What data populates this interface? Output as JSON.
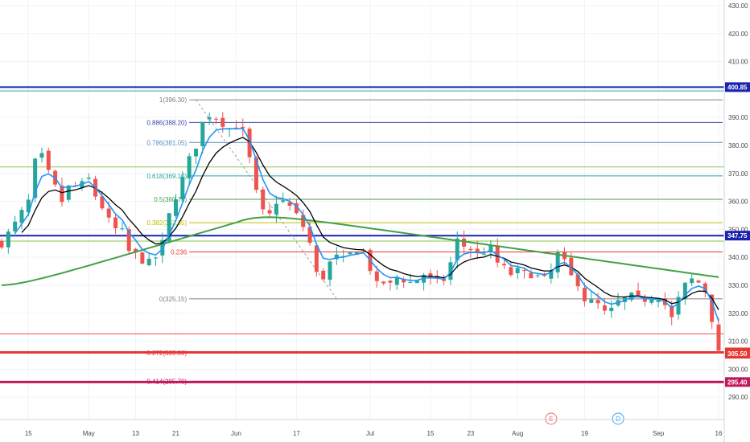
{
  "colors": {
    "up": "#26a69a",
    "down": "#ef5350",
    "ma_fast": "#2196f3",
    "ma_slow": "#000000",
    "ma_long": "#43a047",
    "grid": "#f0f3fa",
    "axis_text": "#4a4a4a"
  },
  "chart_data": {
    "type": "candlestick",
    "ylim": [
      282,
      432
    ],
    "y_ticks": [
      "290.00",
      "300.00",
      "310.00",
      "320.00",
      "330.00",
      "340.00",
      "350.00",
      "360.00",
      "370.00",
      "380.00",
      "390.00",
      "400.00",
      "410.00",
      "420.00",
      "430.00"
    ],
    "x_labels": [
      {
        "label": "15",
        "i": 4
      },
      {
        "label": "May",
        "i": 13
      },
      {
        "label": "13",
        "i": 20
      },
      {
        "label": "21",
        "i": 26
      },
      {
        "label": "Jun",
        "i": 35
      },
      {
        "label": "17",
        "i": 44
      },
      {
        "label": "Jul",
        "i": 55
      },
      {
        "label": "15",
        "i": 64
      },
      {
        "label": "23",
        "i": 70
      },
      {
        "label": "Aug",
        "i": 77
      },
      {
        "label": "19",
        "i": 87
      },
      {
        "label": "Sep",
        "i": 98
      },
      {
        "label": "16",
        "i": 107
      }
    ],
    "events": [
      {
        "label": "E",
        "i": 82,
        "color": "#e57373"
      },
      {
        "label": "D",
        "i": 92,
        "color": "#42a5f5"
      }
    ],
    "close_points": [
      [
        0,
        345
      ],
      [
        2,
        352
      ],
      [
        4,
        360
      ],
      [
        5,
        374
      ],
      [
        6,
        376
      ],
      [
        7,
        370
      ],
      [
        8,
        365
      ],
      [
        9,
        360
      ],
      [
        10,
        365
      ],
      [
        12,
        366
      ],
      [
        13,
        368
      ],
      [
        14,
        362
      ],
      [
        15,
        358
      ],
      [
        16,
        353
      ],
      [
        17,
        350
      ],
      [
        18,
        349
      ],
      [
        19,
        342
      ],
      [
        20,
        341
      ],
      [
        21,
        339
      ],
      [
        22,
        338
      ],
      [
        23,
        340
      ],
      [
        24,
        345
      ],
      [
        25,
        355
      ],
      [
        26,
        362
      ],
      [
        27,
        368
      ],
      [
        28,
        375
      ],
      [
        29,
        380
      ],
      [
        30,
        388
      ],
      [
        31,
        391
      ],
      [
        32,
        390
      ],
      [
        33,
        388
      ],
      [
        34,
        386
      ],
      [
        35,
        387
      ],
      [
        36,
        385
      ],
      [
        37,
        375
      ],
      [
        38,
        363
      ],
      [
        39,
        356
      ],
      [
        40,
        355
      ],
      [
        41,
        360
      ],
      [
        42,
        360
      ],
      [
        43,
        358
      ],
      [
        44,
        355
      ],
      [
        45,
        351
      ],
      [
        46,
        345
      ],
      [
        47,
        334
      ],
      [
        48,
        333
      ],
      [
        49,
        338
      ],
      [
        50,
        340
      ],
      [
        51,
        339
      ],
      [
        52,
        341
      ],
      [
        53,
        343
      ],
      [
        54,
        342
      ],
      [
        55,
        336
      ],
      [
        56,
        330
      ],
      [
        57,
        331
      ],
      [
        58,
        330
      ],
      [
        59,
        333
      ],
      [
        60,
        332
      ],
      [
        61,
        331
      ],
      [
        62,
        332
      ],
      [
        63,
        334
      ],
      [
        64,
        332
      ],
      [
        65,
        331
      ],
      [
        66,
        332
      ],
      [
        67,
        338
      ],
      [
        68,
        346
      ],
      [
        69,
        344
      ],
      [
        70,
        343
      ],
      [
        71,
        341
      ],
      [
        72,
        342
      ],
      [
        73,
        343
      ],
      [
        74,
        338
      ],
      [
        75,
        336
      ],
      [
        76,
        334
      ],
      [
        77,
        335
      ],
      [
        78,
        334
      ],
      [
        79,
        334
      ],
      [
        80,
        333
      ],
      [
        81,
        332
      ],
      [
        82,
        335
      ],
      [
        83,
        341
      ],
      [
        84,
        338
      ],
      [
        85,
        333
      ],
      [
        86,
        331
      ],
      [
        87,
        325
      ],
      [
        88,
        324
      ],
      [
        89,
        323
      ],
      [
        90,
        320
      ],
      [
        91,
        321
      ],
      [
        92,
        324
      ],
      [
        93,
        325
      ],
      [
        94,
        326
      ],
      [
        95,
        325
      ],
      [
        96,
        325
      ],
      [
        97,
        326
      ],
      [
        98,
        326
      ],
      [
        99,
        323
      ],
      [
        100,
        318
      ],
      [
        101,
        325
      ],
      [
        102,
        330
      ],
      [
        103,
        332
      ],
      [
        104,
        331
      ],
      [
        105,
        328
      ],
      [
        106,
        318
      ],
      [
        107,
        305.5
      ]
    ],
    "fib_levels": [
      {
        "ratio": "1",
        "value": 396.3,
        "label": "1(396.30)",
        "color": "#808080"
      },
      {
        "ratio": "0.886",
        "value": 388.2,
        "label": "0.886(388.20)",
        "color": "#3949ab"
      },
      {
        "ratio": "0.786",
        "value": 381.05,
        "label": "0.786(381.05)",
        "color": "#5a8fbf"
      },
      {
        "ratio": "0.618",
        "value": 369.1,
        "label": "0.618(369.10)",
        "color": "#26a69a"
      },
      {
        "ratio": "0.5",
        "value": 360.75,
        "label": "0.5(360.75)",
        "color": "#43a047"
      },
      {
        "ratio": "0.382",
        "value": 352.35,
        "label": "0.382(352.35)",
        "color": "#bdbd00"
      },
      {
        "ratio": "0.236",
        "value": 341.9,
        "label": "0.236",
        "color": "#e53935"
      },
      {
        "ratio": "0",
        "value": 325.15,
        "label": "0(325.15)",
        "color": "#808080"
      },
      {
        "ratio": "-0.272",
        "value": 305.8,
        "label": "-0.272(305.80)",
        "color": "#e53935"
      },
      {
        "ratio": "-0.414",
        "value": 295.7,
        "label": "-0.414(295.70)",
        "color": "#c2185b"
      }
    ],
    "hlines": [
      {
        "value": 400.85,
        "color": "#1a23b0",
        "width": 2
      },
      {
        "value": 399.5,
        "color": "#26a69a",
        "width": 1
      },
      {
        "value": 372.3,
        "color": "#8bc34a",
        "width": 1
      },
      {
        "value": 347.75,
        "color": "#1a23b0",
        "width": 2
      },
      {
        "value": 345.8,
        "color": "#8bc34a",
        "width": 1
      },
      {
        "value": 312.6,
        "color": "#ef5350",
        "width": 1
      },
      {
        "value": 306.0,
        "color": "#e53935",
        "width": 3
      },
      {
        "value": 295.4,
        "color": "#c2185b",
        "width": 3
      }
    ],
    "price_tags": [
      {
        "label": "400.85",
        "value": 400.85,
        "color": "#1a23b0"
      },
      {
        "label": "347.75",
        "value": 347.75,
        "color": "#1a23b0"
      },
      {
        "label": "306.00",
        "value": 306.0,
        "color": "#e53935"
      },
      {
        "label": "305.50",
        "value": 305.5,
        "color": "#e53935"
      },
      {
        "label": "295.40",
        "value": 295.4,
        "color": "#c2185b"
      }
    ]
  }
}
